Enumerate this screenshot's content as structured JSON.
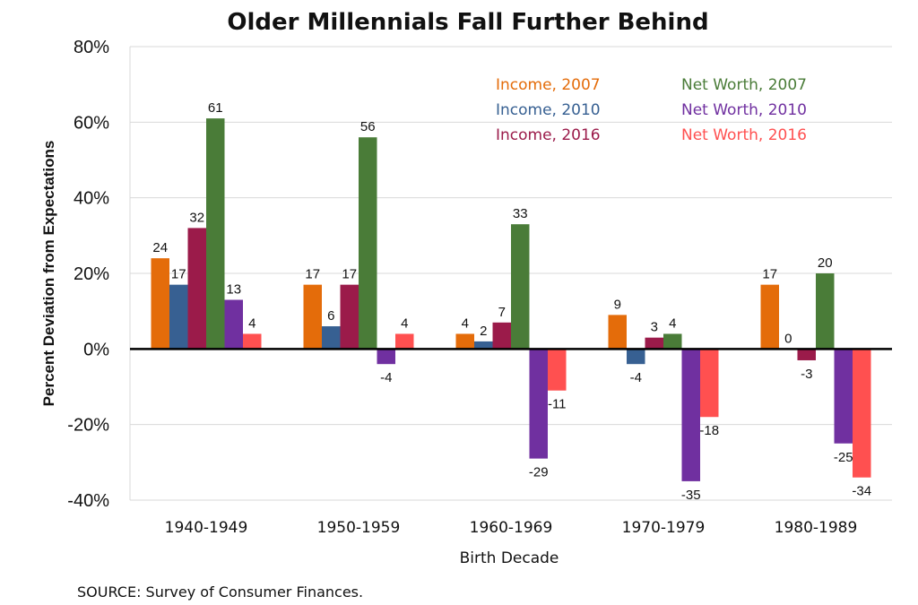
{
  "chart_data": {
    "type": "bar",
    "title": "Older Millennials Fall Further Behind",
    "xlabel": "Birth Decade",
    "ylabel": "Percent Deviation  from Expectations",
    "ylim": [
      -40,
      80
    ],
    "yticks": [
      80,
      60,
      40,
      20,
      0,
      -20,
      -40
    ],
    "ytick_labels": [
      "80%",
      "60%",
      "40%",
      "20%",
      "0%",
      "-20%",
      "-40%"
    ],
    "categories": [
      "1940-1949",
      "1950-1959",
      "1960-1969",
      "1970-1979",
      "1980-1989"
    ],
    "series": [
      {
        "name": "Income, 2007",
        "color": "#e46c0a",
        "values": [
          24,
          17,
          4,
          9,
          17
        ],
        "labels": [
          "24",
          "17",
          "4",
          "9",
          "17"
        ]
      },
      {
        "name": "Income, 2010",
        "color": "#376092",
        "values": [
          17,
          6,
          2,
          -4,
          0
        ],
        "labels": [
          "17",
          "6",
          "2",
          "-4",
          "0"
        ]
      },
      {
        "name": "Income, 2016",
        "color": "#9b1b4a",
        "values": [
          32,
          17,
          7,
          3,
          -3
        ],
        "labels": [
          "32",
          "17",
          "7",
          "3",
          "-3"
        ]
      },
      {
        "name": "Net Worth, 2007",
        "color": "#4a7c38",
        "values": [
          61,
          56,
          33,
          4,
          20
        ],
        "labels": [
          "61",
          "56",
          "33",
          "4",
          "20"
        ]
      },
      {
        "name": "Net Worth, 2010",
        "color": "#7030a0",
        "values": [
          13,
          -4,
          -29,
          -35,
          -25
        ],
        "labels": [
          "13",
          "-4",
          "-29",
          "-35",
          "-25"
        ]
      },
      {
        "name": "Net Worth, 2016",
        "color": "#ff5050",
        "values": [
          4,
          4,
          -11,
          -18,
          -34
        ],
        "labels": [
          "4",
          "4",
          "-11",
          "-18",
          "-34"
        ]
      }
    ],
    "legend_position": "top-right",
    "grid": true,
    "source": "SOURCE: Survey of Consumer Finances."
  }
}
